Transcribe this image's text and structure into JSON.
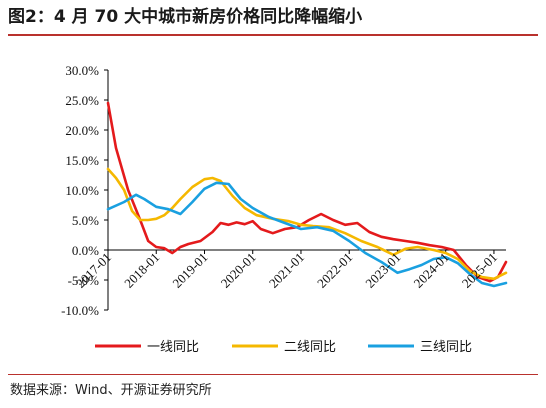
{
  "header": {
    "title": "图2：4 月 70 大中城市新房价格同比降幅缩小"
  },
  "footer": {
    "source": "数据来源：Wind、开源证券研究所"
  },
  "chart_data": {
    "type": "line",
    "title": "",
    "xlabel": "",
    "ylabel": "",
    "ylim": [
      -10,
      30
    ],
    "xlim": [
      "2017-01",
      "2025-04"
    ],
    "x_tick_labels": [
      "2017-01",
      "2018-01",
      "2019-01",
      "2020-01",
      "2021-01",
      "2022-01",
      "2023-01",
      "2024-01",
      "2025-01"
    ],
    "y_tick_labels": [
      "-10.0%",
      "-5.0%",
      "0.0%",
      "5.0%",
      "10.0%",
      "15.0%",
      "20.0%",
      "25.0%",
      "30.0%"
    ],
    "y_ticks": [
      -10,
      -5,
      0,
      5,
      10,
      15,
      20,
      25,
      30
    ],
    "grid": false,
    "legend_position": "bottom",
    "series": [
      {
        "name": "一线同比",
        "color": "#e41a1c",
        "points": [
          [
            "2017-01",
            24.5
          ],
          [
            "2017-03",
            17
          ],
          [
            "2017-06",
            10
          ],
          [
            "2017-09",
            5
          ],
          [
            "2017-11",
            1.5
          ],
          [
            "2018-01",
            0.5
          ],
          [
            "2018-03",
            0.3
          ],
          [
            "2018-05",
            -0.5
          ],
          [
            "2018-07",
            0.5
          ],
          [
            "2018-09",
            1
          ],
          [
            "2018-12",
            1.5
          ],
          [
            "2019-03",
            3
          ],
          [
            "2019-05",
            4.5
          ],
          [
            "2019-07",
            4.2
          ],
          [
            "2019-09",
            4.6
          ],
          [
            "2019-11",
            4.3
          ],
          [
            "2020-01",
            4.8
          ],
          [
            "2020-03",
            3.5
          ],
          [
            "2020-06",
            2.8
          ],
          [
            "2020-09",
            3.5
          ],
          [
            "2020-12",
            3.8
          ],
          [
            "2021-03",
            5
          ],
          [
            "2021-06",
            6
          ],
          [
            "2021-09",
            5
          ],
          [
            "2021-12",
            4.2
          ],
          [
            "2022-03",
            4.5
          ],
          [
            "2022-06",
            3
          ],
          [
            "2022-09",
            2.2
          ],
          [
            "2022-12",
            1.8
          ],
          [
            "2023-03",
            1.5
          ],
          [
            "2023-06",
            1.2
          ],
          [
            "2023-09",
            0.8
          ],
          [
            "2023-12",
            0.5
          ],
          [
            "2024-03",
            0
          ],
          [
            "2024-06",
            -2.5
          ],
          [
            "2024-09",
            -4.5
          ],
          [
            "2024-12",
            -5.2
          ],
          [
            "2025-02",
            -4.5
          ],
          [
            "2025-04",
            -2
          ]
        ]
      },
      {
        "name": "二线同比",
        "color": "#f5b800",
        "points": [
          [
            "2017-01",
            13.5
          ],
          [
            "2017-03",
            12
          ],
          [
            "2017-05",
            10
          ],
          [
            "2017-07",
            6.5
          ],
          [
            "2017-09",
            5
          ],
          [
            "2017-11",
            5
          ],
          [
            "2018-01",
            5.2
          ],
          [
            "2018-03",
            5.8
          ],
          [
            "2018-05",
            7
          ],
          [
            "2018-07",
            8.5
          ],
          [
            "2018-10",
            10.5
          ],
          [
            "2019-01",
            11.8
          ],
          [
            "2019-03",
            12
          ],
          [
            "2019-05",
            11.5
          ],
          [
            "2019-08",
            9
          ],
          [
            "2019-11",
            7
          ],
          [
            "2020-02",
            5.8
          ],
          [
            "2020-06",
            5.2
          ],
          [
            "2020-10",
            4.8
          ],
          [
            "2021-01",
            4.2
          ],
          [
            "2021-04",
            4
          ],
          [
            "2021-08",
            3.8
          ],
          [
            "2021-12",
            2.8
          ],
          [
            "2022-04",
            1.5
          ],
          [
            "2022-08",
            0.5
          ],
          [
            "2022-12",
            -0.8
          ],
          [
            "2023-03",
            0.2
          ],
          [
            "2023-06",
            0.5
          ],
          [
            "2023-10",
            0
          ],
          [
            "2024-01",
            -0.5
          ],
          [
            "2024-04",
            -1.5
          ],
          [
            "2024-07",
            -3.5
          ],
          [
            "2024-10",
            -4.5
          ],
          [
            "2025-01",
            -4.8
          ],
          [
            "2025-04",
            -3.8
          ]
        ]
      },
      {
        "name": "三线同比",
        "color": "#1aa0e0",
        "points": [
          [
            "2017-01",
            6.8
          ],
          [
            "2017-05",
            8
          ],
          [
            "2017-08",
            9.2
          ],
          [
            "2017-10",
            8.5
          ],
          [
            "2018-01",
            7.2
          ],
          [
            "2018-04",
            6.8
          ],
          [
            "2018-07",
            6
          ],
          [
            "2018-10",
            8
          ],
          [
            "2019-01",
            10.2
          ],
          [
            "2019-04",
            11.2
          ],
          [
            "2019-07",
            11
          ],
          [
            "2019-10",
            8.5
          ],
          [
            "2020-01",
            7
          ],
          [
            "2020-05",
            5.5
          ],
          [
            "2020-09",
            4.5
          ],
          [
            "2021-01",
            3.5
          ],
          [
            "2021-05",
            3.8
          ],
          [
            "2021-09",
            3.2
          ],
          [
            "2022-01",
            1.5
          ],
          [
            "2022-05",
            -0.5
          ],
          [
            "2022-09",
            -2
          ],
          [
            "2023-01",
            -3.8
          ],
          [
            "2023-04",
            -3.2
          ],
          [
            "2023-07",
            -2.5
          ],
          [
            "2023-10",
            -1.5
          ],
          [
            "2024-01",
            -1.2
          ],
          [
            "2024-04",
            -2.2
          ],
          [
            "2024-07",
            -4
          ],
          [
            "2024-10",
            -5.5
          ],
          [
            "2025-01",
            -6
          ],
          [
            "2025-04",
            -5.5
          ]
        ]
      }
    ]
  }
}
